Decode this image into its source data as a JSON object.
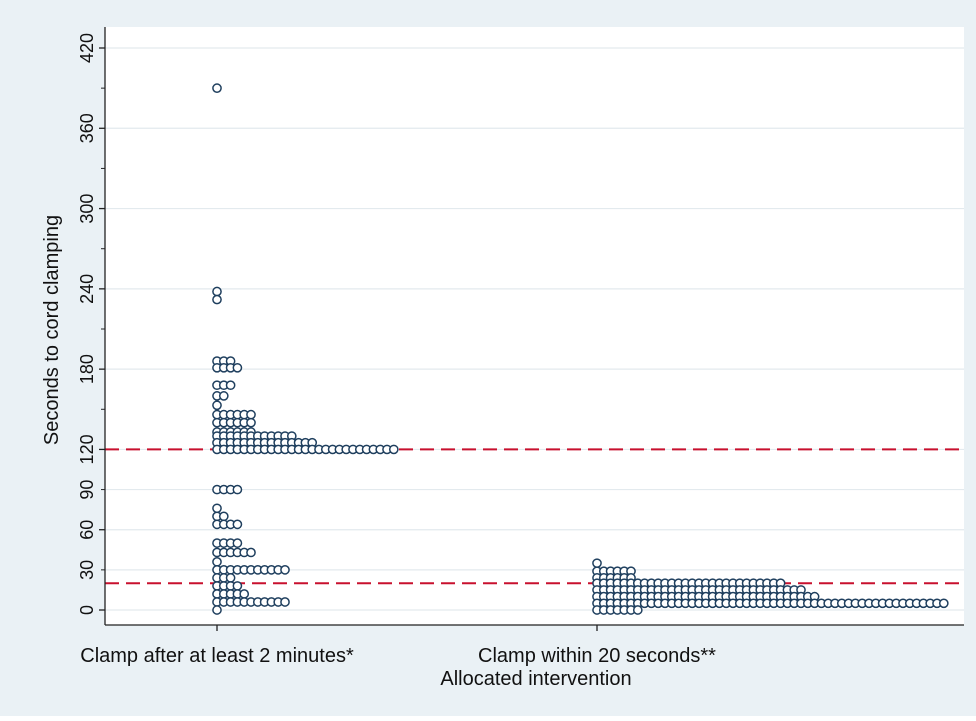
{
  "chart_data": {
    "type": "scatter",
    "title": "",
    "xlabel": "Allocated intervention",
    "ylabel": "Seconds to cord clamping",
    "categories": [
      "Clamp after at least 2 minutes*",
      "Clamp within 20 seconds**"
    ],
    "y_ticks_major": [
      0,
      60,
      120,
      180,
      240,
      300,
      360,
      420
    ],
    "y_ticks_minor": [
      30,
      90
    ],
    "ylim": [
      -10,
      430
    ],
    "reference_lines": [
      120,
      20
    ],
    "grid": true,
    "series": [
      {
        "category": "Clamp after at least 2 minutes*",
        "rows": [
          {
            "y": 390,
            "count": 1
          },
          {
            "y": 238,
            "count": 1
          },
          {
            "y": 232,
            "count": 1
          },
          {
            "y": 186,
            "count": 3
          },
          {
            "y": 181,
            "count": 4
          },
          {
            "y": 168,
            "count": 3
          },
          {
            "y": 160,
            "count": 2
          },
          {
            "y": 153,
            "count": 1
          },
          {
            "y": 146,
            "count": 6
          },
          {
            "y": 140,
            "count": 6
          },
          {
            "y": 133,
            "count": 6
          },
          {
            "y": 130,
            "count": 12
          },
          {
            "y": 125,
            "count": 15
          },
          {
            "y": 120,
            "count": 27
          },
          {
            "y": 90,
            "count": 4
          },
          {
            "y": 76,
            "count": 1
          },
          {
            "y": 70,
            "count": 2
          },
          {
            "y": 64,
            "count": 4
          },
          {
            "y": 50,
            "count": 4
          },
          {
            "y": 43,
            "count": 6
          },
          {
            "y": 36,
            "count": 1
          },
          {
            "y": 30,
            "count": 11
          },
          {
            "y": 24,
            "count": 3
          },
          {
            "y": 18,
            "count": 4
          },
          {
            "y": 12,
            "count": 5
          },
          {
            "y": 6,
            "count": 11
          },
          {
            "y": 0,
            "count": 1
          }
        ]
      },
      {
        "category": "Clamp within 20 seconds**",
        "rows": [
          {
            "y": 35,
            "count": 1
          },
          {
            "y": 29,
            "count": 6
          },
          {
            "y": 24,
            "count": 6
          },
          {
            "y": 20,
            "count": 28
          },
          {
            "y": 15,
            "count": 31
          },
          {
            "y": 10,
            "count": 33
          },
          {
            "y": 5,
            "count": 52
          },
          {
            "y": 0,
            "count": 7
          }
        ]
      }
    ]
  }
}
